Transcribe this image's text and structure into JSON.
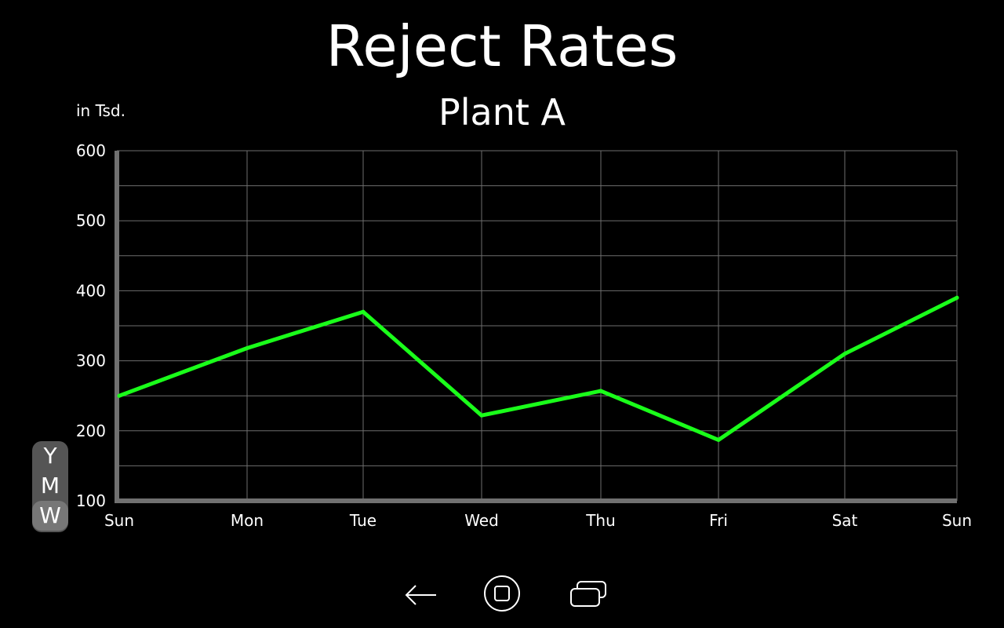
{
  "header": {
    "title": "Reject Rates",
    "subtitle": "Plant A",
    "unit_label": "in Tsd."
  },
  "range_toggle": {
    "options": [
      "Y",
      "M",
      "W"
    ],
    "selected": "W"
  },
  "navigation": {
    "back_icon": "back-arrow-icon",
    "home_icon": "home-icon",
    "recents_icon": "recent-apps-icon"
  },
  "chart_data": {
    "type": "line",
    "categories": [
      "Sun",
      "Mon",
      "Tue",
      "Wed",
      "Thu",
      "Fri",
      "Sat",
      "Sun"
    ],
    "series": [
      {
        "values": [
          250,
          318,
          370,
          222,
          257,
          187,
          310,
          390
        ],
        "color": "#1aff1a"
      }
    ],
    "title": "Reject Rates",
    "subtitle": "Plant A",
    "ylabel": "in Tsd.",
    "xlabel": "",
    "ylim": [
      100,
      600
    ],
    "yticks": [
      100,
      200,
      300,
      400,
      500,
      600
    ],
    "grid": true,
    "colors": {
      "background": "#000000",
      "grid": "#6e6e6e",
      "axis": "#707070",
      "text": "#ffffff"
    }
  }
}
